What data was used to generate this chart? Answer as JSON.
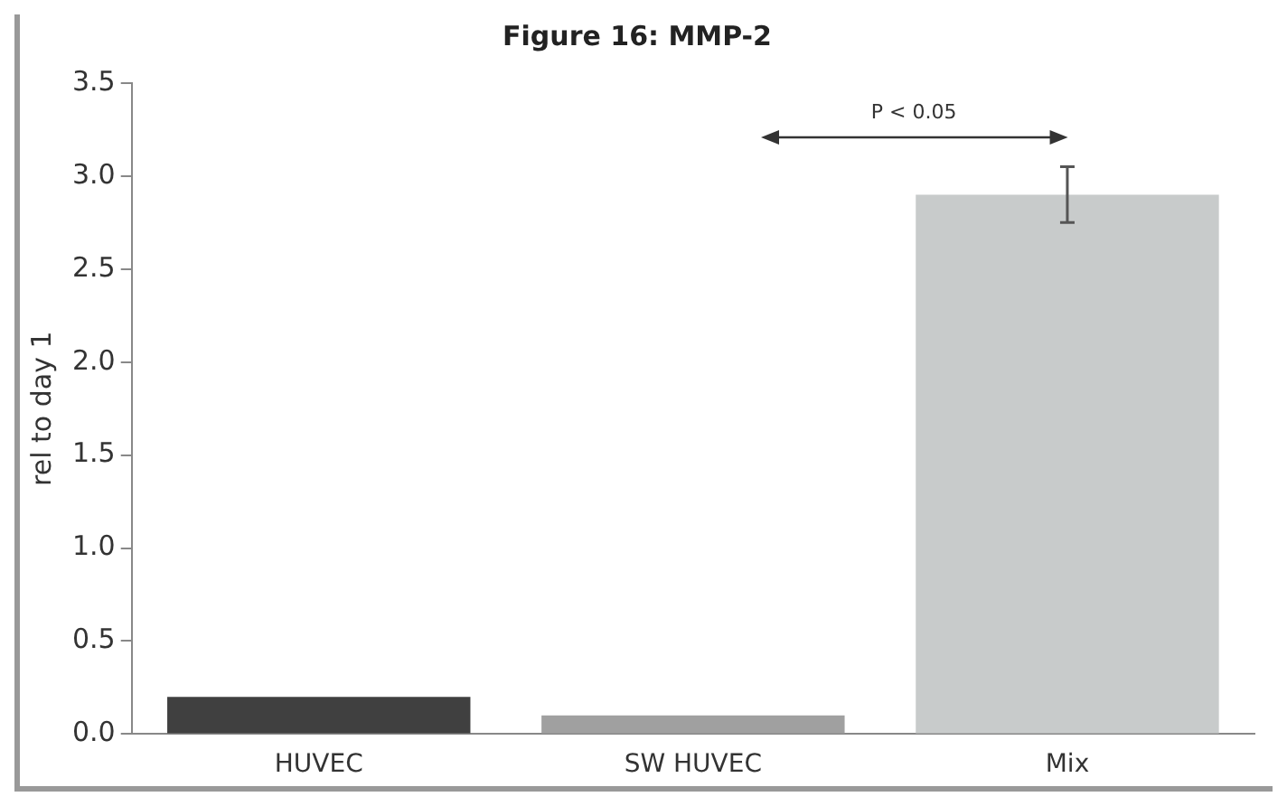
{
  "chart_data": {
    "type": "bar",
    "title": "Figure 16: MMP-2",
    "ylabel": "rel to day 1",
    "categories": [
      "HUVEC",
      "SW HUVEC",
      "Mix"
    ],
    "values": [
      0.2,
      0.1,
      2.9
    ],
    "colors": [
      "#404040",
      "#a0a0a0",
      "#c8cbcb"
    ],
    "errors": [
      null,
      null,
      0.15
    ],
    "ylim": [
      0,
      3.5
    ],
    "yticks": [
      {
        "value": 0,
        "label": "0.0"
      },
      {
        "value": 0.5,
        "label": "0.5"
      },
      {
        "value": 1,
        "label": "1.0"
      },
      {
        "value": 1.5,
        "label": "1.5"
      },
      {
        "value": 2,
        "label": "2.0"
      },
      {
        "value": 2.5,
        "label": "2.5"
      },
      {
        "value": 3,
        "label": "3.0"
      },
      {
        "value": 3.5,
        "label": "3.5"
      }
    ],
    "annotations": [
      "P < 0.05"
    ],
    "grid": false,
    "legend": false
  }
}
